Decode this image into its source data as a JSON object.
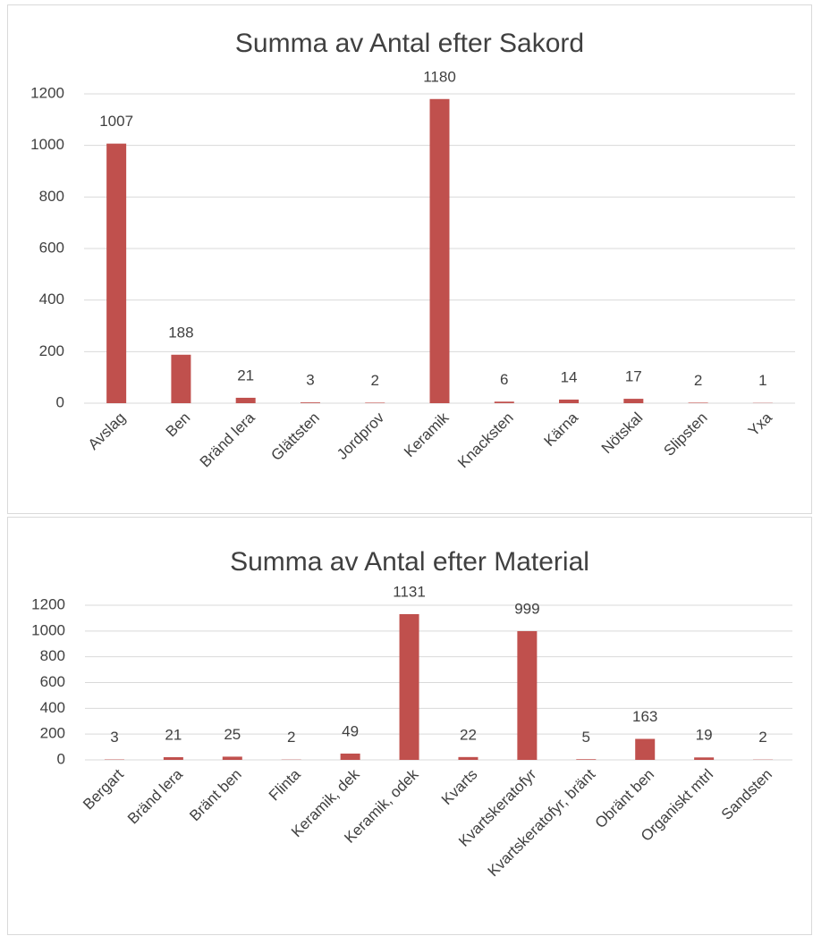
{
  "chart_data": [
    {
      "type": "bar",
      "title": "Summa av Antal efter Sakord",
      "categories": [
        "Avslag",
        "Ben",
        "Bränd lera",
        "Glättsten",
        "Jordprov",
        "Keramik",
        "Knacksten",
        "Kärna",
        "Nötskal",
        "Slipsten",
        "Yxa"
      ],
      "values": [
        1007,
        188,
        21,
        3,
        2,
        1180,
        6,
        14,
        17,
        2,
        1
      ],
      "color": "#c0504d",
      "ylim": [
        0,
        1200
      ],
      "yticks": [
        0,
        200,
        400,
        600,
        800,
        1000,
        1200
      ],
      "grid": true
    },
    {
      "type": "bar",
      "title": "Summa av Antal efter Material",
      "categories": [
        "Bergart",
        "Bränd lera",
        "Bränt ben",
        "Flinta",
        "Keramik, dek",
        "Keramik, odek",
        "Kvarts",
        "Kvartskeratofyr",
        "Kvartskeratofyr, bränt",
        "Obränt ben",
        "Organiskt mtrl",
        "Sandsten"
      ],
      "values": [
        3,
        21,
        25,
        2,
        49,
        1131,
        22,
        999,
        5,
        163,
        19,
        2
      ],
      "color": "#c0504d",
      "ylim": [
        0,
        1200
      ],
      "yticks": [
        0,
        200,
        400,
        600,
        800,
        1000,
        1200
      ],
      "grid": true
    }
  ]
}
